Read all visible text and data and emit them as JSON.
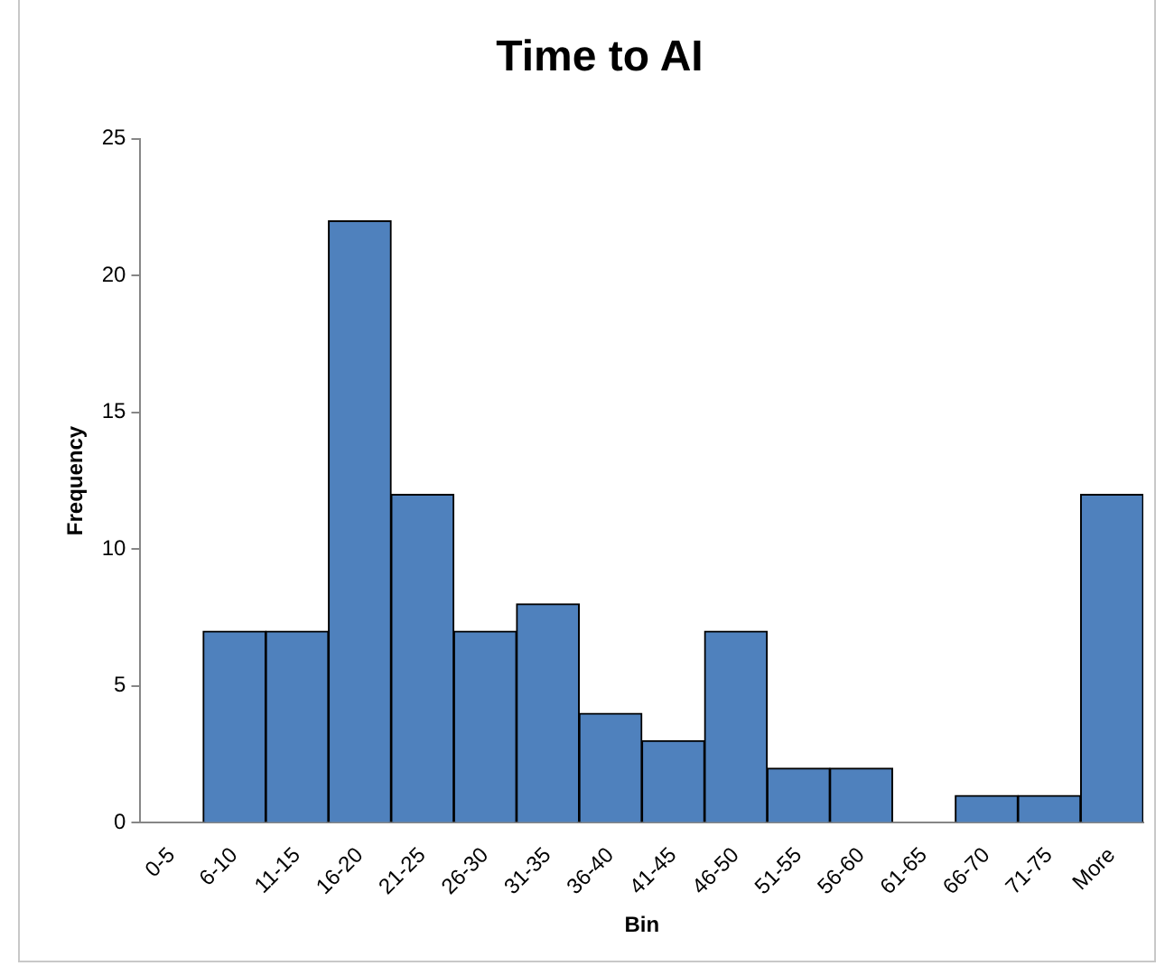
{
  "chart_data": {
    "type": "bar",
    "title": "Time to AI",
    "xlabel": "Bin",
    "ylabel": "Frequency",
    "categories": [
      "0-5",
      "6-10",
      "11-15",
      "16-20",
      "21-25",
      "26-30",
      "31-35",
      "36-40",
      "41-45",
      "46-50",
      "51-55",
      "56-60",
      "61-65",
      "66-70",
      "71-75",
      "More"
    ],
    "values": [
      0,
      7,
      7,
      22,
      12,
      7,
      8,
      4,
      3,
      7,
      2,
      2,
      0,
      1,
      1,
      12
    ],
    "color": "#4f81bd",
    "ylim": [
      0,
      25
    ],
    "yticks": [
      0,
      5,
      10,
      15,
      20,
      25
    ],
    "grid": false
  }
}
